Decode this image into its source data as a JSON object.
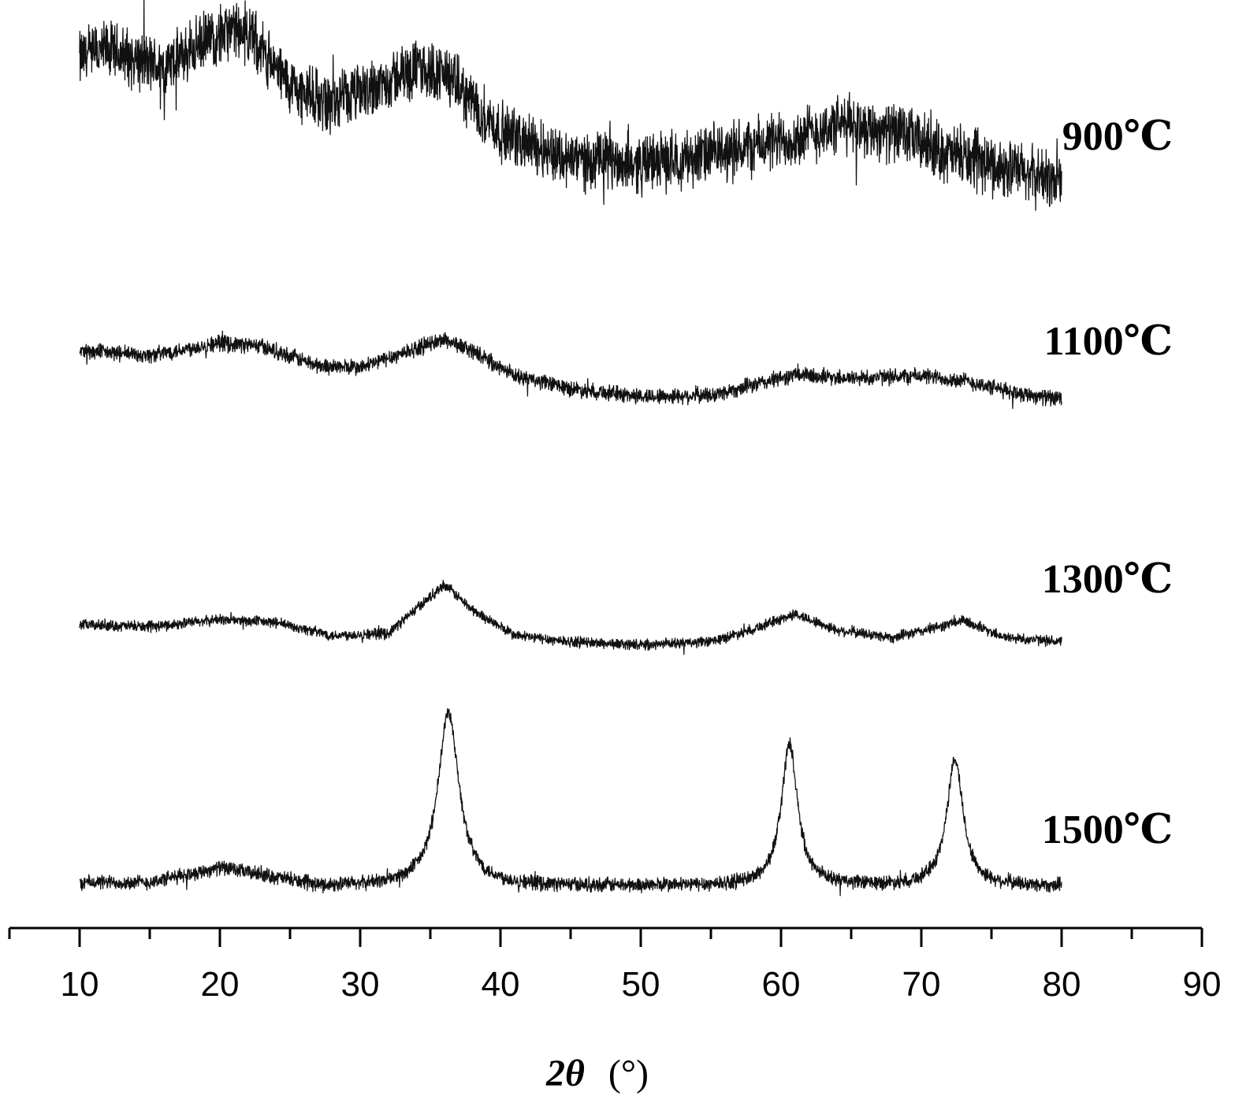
{
  "chart_data": {
    "type": "line",
    "title": "",
    "xlabel_main": "2θ",
    "xlabel_unit": "(°)",
    "ylabel": "",
    "xlim": [
      5,
      90
    ],
    "xticks": [
      10,
      20,
      30,
      40,
      50,
      60,
      70,
      80,
      90
    ],
    "x_minor_step": 5,
    "grid": false,
    "stacked_offset": true,
    "series_style": {
      "color": "#111111",
      "noise": "high-frequency"
    },
    "series": [
      {
        "name": "900℃",
        "x_range": [
          10,
          80
        ],
        "baseline_points": [
          [
            10,
            0.78
          ],
          [
            12,
            0.82
          ],
          [
            16,
            0.74
          ],
          [
            20,
            0.9
          ],
          [
            22,
            0.9
          ],
          [
            25,
            0.66
          ],
          [
            28,
            0.58
          ],
          [
            34,
            0.74
          ],
          [
            36,
            0.72
          ],
          [
            40,
            0.46
          ],
          [
            45,
            0.34
          ],
          [
            50,
            0.32
          ],
          [
            55,
            0.36
          ],
          [
            60,
            0.42
          ],
          [
            65,
            0.5
          ],
          [
            69,
            0.44
          ],
          [
            72,
            0.36
          ],
          [
            76,
            0.3
          ],
          [
            80,
            0.24
          ]
        ],
        "noise_amplitude": 0.13
      },
      {
        "name": "1100℃",
        "x_range": [
          10,
          80
        ],
        "baseline_points": [
          [
            10,
            0.55
          ],
          [
            15,
            0.51
          ],
          [
            20,
            0.62
          ],
          [
            23,
            0.59
          ],
          [
            27,
            0.42
          ],
          [
            30,
            0.4
          ],
          [
            33,
            0.53
          ],
          [
            36,
            0.65
          ],
          [
            38,
            0.55
          ],
          [
            41,
            0.33
          ],
          [
            45,
            0.22
          ],
          [
            50,
            0.15
          ],
          [
            55,
            0.16
          ],
          [
            58,
            0.25
          ],
          [
            61,
            0.34
          ],
          [
            65,
            0.31
          ],
          [
            70,
            0.33
          ],
          [
            73,
            0.29
          ],
          [
            76,
            0.2
          ],
          [
            80,
            0.12
          ]
        ],
        "noise_amplitude": 0.07
      },
      {
        "name": "1300℃",
        "x_range": [
          10,
          80
        ],
        "baseline_points": [
          [
            10,
            0.2
          ],
          [
            15,
            0.18
          ],
          [
            20,
            0.25
          ],
          [
            24,
            0.22
          ],
          [
            28,
            0.1
          ],
          [
            32,
            0.12
          ],
          [
            34,
            0.35
          ],
          [
            36,
            0.58
          ],
          [
            38,
            0.34
          ],
          [
            41,
            0.1
          ],
          [
            45,
            0.04
          ],
          [
            50,
            0.01
          ],
          [
            55,
            0.04
          ],
          [
            58,
            0.16
          ],
          [
            61,
            0.3
          ],
          [
            64,
            0.15
          ],
          [
            68,
            0.08
          ],
          [
            70,
            0.14
          ],
          [
            73,
            0.24
          ],
          [
            76,
            0.08
          ],
          [
            80,
            0.04
          ]
        ],
        "noise_amplitude": 0.05
      },
      {
        "name": "1500℃",
        "x_range": [
          10,
          80
        ],
        "baseline_points": [
          [
            10,
            0.02
          ],
          [
            15,
            0.02
          ],
          [
            20,
            0.1
          ],
          [
            23,
            0.06
          ],
          [
            27,
            0.0
          ],
          [
            32,
            0.0
          ]
        ],
        "peaks": [
          {
            "x": 36.3,
            "height": 0.96,
            "width": 0.9
          },
          {
            "x": 60.6,
            "height": 0.78,
            "width": 0.7
          },
          {
            "x": 72.4,
            "height": 0.7,
            "width": 0.7
          }
        ],
        "noise_amplitude": 0.04
      }
    ]
  }
}
